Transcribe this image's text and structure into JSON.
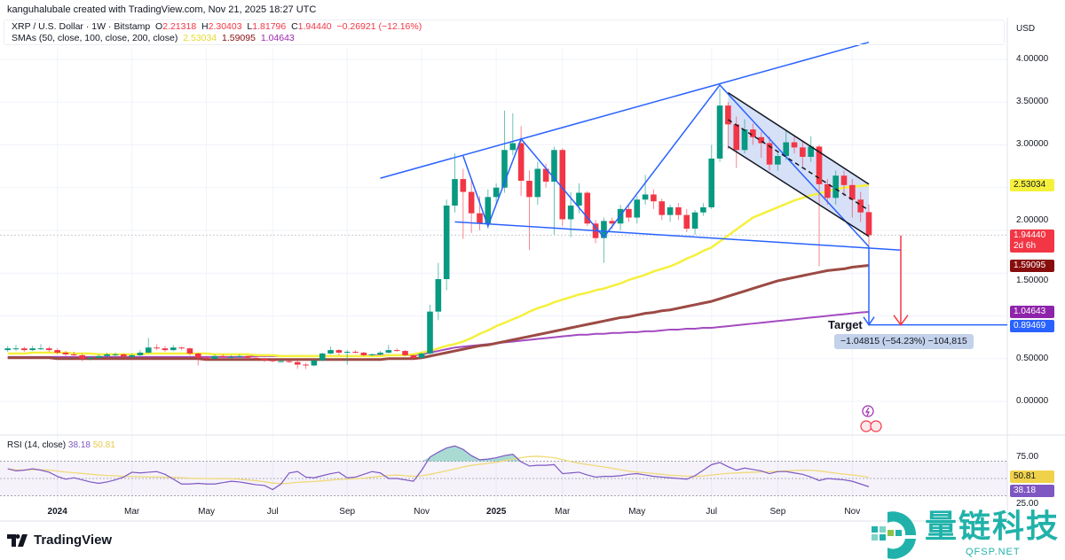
{
  "credit": "kanguhalubale created with TradingView.com, Nov 21, 2025 18:27 UTC",
  "legend": {
    "symbol": "XRP / U.S. Dollar · 1W · Bitstamp",
    "o_label": "O",
    "o": "2.21318",
    "h_label": "H",
    "h": "2.30403",
    "l_label": "L",
    "l": "1.81796",
    "c_label": "C",
    "c": "1.94440",
    "change": "−0.26921 (−12.16%)",
    "sma_label": "SMAs (50, close, 100, close, 200, close)",
    "sma50": "2.53034",
    "sma100": "1.59095",
    "sma200": "1.04643"
  },
  "price_axis": {
    "currency": "USD",
    "ticks": [
      "4.00000",
      "3.50000",
      "3.00000",
      "2.00000",
      "1.50000",
      "0.50000",
      "0.00000"
    ],
    "tags": {
      "sma50": "2.53034",
      "last": "1.94440",
      "countdown": "2d 6h",
      "sma100": "1.59095",
      "sma200": "1.04643",
      "target": "0.89469"
    }
  },
  "rsi": {
    "label": "RSI (14, close)",
    "value": "38.18",
    "ma": "50.81",
    "ticks": [
      "75.00",
      "25.00"
    ]
  },
  "annotation": {
    "target_label": "Target",
    "measure": "−1.04815 (−54.23%) −104,815"
  },
  "footer": {
    "brand": "TradingView"
  },
  "watermark": {
    "text": "量链科技",
    "sub": "QFSP.NET"
  },
  "colors": {
    "up": "#089981",
    "down": "#f23645",
    "sma50": "#f5f03c",
    "sma100": "#9c4a44",
    "sma200": "#a44bc0",
    "drawing": "#2962ff",
    "channel_fill": "#c5d3f3",
    "rsi": "#7e57c2",
    "rsi_ma": "#f0d978",
    "target_arrow": "#f23645"
  },
  "chart_data": {
    "type": "candlestick",
    "title": "XRP / U.S. Dollar · 1W · Bitstamp",
    "period": "1W",
    "last_bar_week": "2025-11-17",
    "ylim": [
      -0.6,
      4.1
    ],
    "x_ticks": [
      {
        "label": "2024",
        "date": "2024-01-01",
        "bold": true
      },
      {
        "label": "Mar",
        "date": "2024-03-04"
      },
      {
        "label": "May",
        "date": "2024-05-06"
      },
      {
        "label": "Jul",
        "date": "2024-07-01"
      },
      {
        "label": "Sep",
        "date": "2024-09-02"
      },
      {
        "label": "Nov",
        "date": "2024-11-04"
      },
      {
        "label": "2025",
        "date": "2025-01-06",
        "bold": true
      },
      {
        "label": "Mar",
        "date": "2025-03-03"
      },
      {
        "label": "May",
        "date": "2025-05-05"
      },
      {
        "label": "Jul",
        "date": "2025-07-07"
      },
      {
        "label": "Sep",
        "date": "2025-09-01"
      },
      {
        "label": "Nov",
        "date": "2025-11-03"
      }
    ],
    "y_grid": [
      0,
      0.5,
      1.0,
      1.5,
      2.0,
      2.5,
      3.0,
      3.5,
      4.0
    ],
    "ohlc": [
      [
        0.6,
        0.65,
        0.58,
        0.62
      ],
      [
        0.62,
        0.66,
        0.59,
        0.62
      ],
      [
        0.62,
        0.64,
        0.58,
        0.6
      ],
      [
        0.6,
        0.65,
        0.59,
        0.62
      ],
      [
        0.62,
        0.67,
        0.6,
        0.62
      ],
      [
        0.62,
        0.64,
        0.58,
        0.6
      ],
      [
        0.6,
        0.62,
        0.55,
        0.57
      ],
      [
        0.57,
        0.59,
        0.53,
        0.55
      ],
      [
        0.55,
        0.58,
        0.52,
        0.54
      ],
      [
        0.54,
        0.56,
        0.47,
        0.5
      ],
      [
        0.5,
        0.53,
        0.48,
        0.51
      ],
      [
        0.51,
        0.55,
        0.5,
        0.53
      ],
      [
        0.53,
        0.57,
        0.52,
        0.55
      ],
      [
        0.55,
        0.57,
        0.53,
        0.55
      ],
      [
        0.55,
        0.56,
        0.5,
        0.52
      ],
      [
        0.52,
        0.56,
        0.51,
        0.54
      ],
      [
        0.54,
        0.6,
        0.53,
        0.57
      ],
      [
        0.57,
        0.74,
        0.56,
        0.63
      ],
      [
        0.63,
        0.67,
        0.6,
        0.62
      ],
      [
        0.62,
        0.65,
        0.58,
        0.6
      ],
      [
        0.6,
        0.66,
        0.59,
        0.63
      ],
      [
        0.63,
        0.64,
        0.6,
        0.62
      ],
      [
        0.62,
        0.63,
        0.54,
        0.56
      ],
      [
        0.56,
        0.57,
        0.42,
        0.51
      ],
      [
        0.51,
        0.53,
        0.48,
        0.5
      ],
      [
        0.5,
        0.55,
        0.49,
        0.53
      ],
      [
        0.53,
        0.55,
        0.51,
        0.52
      ],
      [
        0.52,
        0.54,
        0.5,
        0.52
      ],
      [
        0.52,
        0.55,
        0.51,
        0.53
      ],
      [
        0.53,
        0.54,
        0.49,
        0.51
      ],
      [
        0.51,
        0.53,
        0.48,
        0.5
      ],
      [
        0.5,
        0.51,
        0.46,
        0.48
      ],
      [
        0.48,
        0.5,
        0.46,
        0.47
      ],
      [
        0.47,
        0.49,
        0.46,
        0.47
      ],
      [
        0.47,
        0.48,
        0.45,
        0.46
      ],
      [
        0.46,
        0.48,
        0.38,
        0.43
      ],
      [
        0.43,
        0.45,
        0.38,
        0.42
      ],
      [
        0.42,
        0.49,
        0.41,
        0.48
      ],
      [
        0.48,
        0.57,
        0.47,
        0.56
      ],
      [
        0.56,
        0.64,
        0.55,
        0.6
      ],
      [
        0.6,
        0.61,
        0.54,
        0.57
      ],
      [
        0.57,
        0.6,
        0.43,
        0.58
      ],
      [
        0.58,
        0.6,
        0.56,
        0.57
      ],
      [
        0.57,
        0.58,
        0.53,
        0.54
      ],
      [
        0.54,
        0.56,
        0.53,
        0.55
      ],
      [
        0.55,
        0.59,
        0.54,
        0.57
      ],
      [
        0.57,
        0.66,
        0.56,
        0.6
      ],
      [
        0.6,
        0.62,
        0.58,
        0.59
      ],
      [
        0.59,
        0.6,
        0.53,
        0.54
      ],
      [
        0.54,
        0.55,
        0.49,
        0.51
      ],
      [
        0.51,
        0.57,
        0.5,
        0.56
      ],
      [
        0.56,
        1.13,
        0.55,
        1.05
      ],
      [
        1.05,
        1.62,
        0.95,
        1.43
      ],
      [
        1.43,
        2.36,
        1.3,
        2.29
      ],
      [
        2.29,
        2.9,
        2.21,
        2.6
      ],
      [
        2.6,
        2.72,
        1.9,
        2.45
      ],
      [
        2.45,
        2.58,
        1.97,
        2.2
      ],
      [
        2.2,
        2.4,
        2.0,
        2.08
      ],
      [
        2.08,
        2.48,
        2.02,
        2.39
      ],
      [
        2.39,
        2.55,
        2.3,
        2.5
      ],
      [
        2.5,
        3.4,
        2.44,
        2.94
      ],
      [
        2.94,
        3.37,
        2.88,
        3.02
      ],
      [
        3.02,
        3.22,
        2.4,
        2.58
      ],
      [
        2.58,
        2.7,
        1.77,
        2.39
      ],
      [
        2.39,
        2.8,
        2.3,
        2.72
      ],
      [
        2.72,
        2.78,
        2.5,
        2.57
      ],
      [
        2.57,
        2.98,
        1.95,
        2.94
      ],
      [
        2.94,
        2.96,
        2.05,
        2.13
      ],
      [
        2.13,
        2.45,
        1.92,
        2.29
      ],
      [
        2.29,
        2.55,
        2.2,
        2.44
      ],
      [
        2.44,
        2.46,
        2.05,
        2.08
      ],
      [
        2.08,
        2.12,
        1.85,
        1.91
      ],
      [
        1.91,
        2.15,
        1.62,
        2.11
      ],
      [
        2.11,
        2.15,
        2.02,
        2.08
      ],
      [
        2.08,
        2.3,
        2.0,
        2.25
      ],
      [
        2.25,
        2.3,
        2.1,
        2.15
      ],
      [
        2.15,
        2.4,
        2.08,
        2.36
      ],
      [
        2.36,
        2.65,
        2.3,
        2.42
      ],
      [
        2.42,
        2.48,
        2.25,
        2.34
      ],
      [
        2.34,
        2.37,
        2.12,
        2.18
      ],
      [
        2.18,
        2.3,
        2.1,
        2.27
      ],
      [
        2.27,
        2.32,
        2.12,
        2.18
      ],
      [
        2.18,
        2.25,
        1.98,
        2.02
      ],
      [
        2.02,
        2.24,
        1.95,
        2.21
      ],
      [
        2.21,
        2.32,
        2.17,
        2.27
      ],
      [
        2.27,
        3.0,
        2.25,
        2.84
      ],
      [
        2.84,
        3.66,
        2.8,
        3.46
      ],
      [
        3.46,
        3.5,
        2.95,
        3.24
      ],
      [
        3.24,
        3.33,
        2.73,
        2.94
      ],
      [
        2.94,
        3.3,
        2.9,
        3.18
      ],
      [
        3.18,
        3.25,
        3.0,
        3.09
      ],
      [
        3.09,
        3.15,
        2.85,
        3.02
      ],
      [
        3.02,
        3.1,
        2.7,
        2.77
      ],
      [
        2.77,
        2.92,
        2.7,
        2.87
      ],
      [
        2.87,
        3.17,
        2.82,
        3.03
      ],
      [
        3.03,
        3.1,
        2.9,
        2.97
      ],
      [
        2.97,
        3.05,
        2.75,
        2.86
      ],
      [
        2.86,
        3.1,
        2.8,
        2.98
      ],
      [
        2.98,
        3.0,
        1.58,
        2.54
      ],
      [
        2.54,
        2.6,
        2.3,
        2.38
      ],
      [
        2.38,
        2.7,
        2.3,
        2.64
      ],
      [
        2.64,
        2.7,
        2.4,
        2.53
      ],
      [
        2.53,
        2.6,
        2.15,
        2.36
      ],
      [
        2.36,
        2.45,
        2.1,
        2.21
      ],
      [
        2.21318,
        2.30403,
        1.81796,
        1.9444
      ]
    ],
    "sma50": [
      0.56,
      0.56,
      0.56,
      0.57,
      0.57,
      0.57,
      0.57,
      0.57,
      0.56,
      0.56,
      0.56,
      0.55,
      0.55,
      0.55,
      0.55,
      0.55,
      0.55,
      0.56,
      0.56,
      0.56,
      0.56,
      0.56,
      0.56,
      0.56,
      0.56,
      0.55,
      0.55,
      0.55,
      0.55,
      0.55,
      0.54,
      0.54,
      0.54,
      0.53,
      0.53,
      0.53,
      0.53,
      0.53,
      0.53,
      0.53,
      0.53,
      0.53,
      0.53,
      0.53,
      0.53,
      0.53,
      0.54,
      0.54,
      0.54,
      0.55,
      0.57,
      0.59,
      0.62,
      0.65,
      0.67,
      0.7,
      0.74,
      0.79,
      0.83,
      0.88,
      0.92,
      0.96,
      1.0,
      1.05,
      1.09,
      1.12,
      1.16,
      1.19,
      1.22,
      1.25,
      1.27,
      1.3,
      1.32,
      1.35,
      1.38,
      1.42,
      1.45,
      1.48,
      1.52,
      1.55,
      1.58,
      1.62,
      1.67,
      1.71,
      1.76,
      1.8,
      1.87,
      1.94,
      2.01,
      2.08,
      2.15,
      2.19,
      2.23,
      2.27,
      2.31,
      2.35,
      2.38,
      2.41,
      2.43,
      2.46,
      2.48,
      2.5,
      2.51,
      2.52,
      2.53034
    ],
    "sma100": [
      0.51,
      0.51,
      0.51,
      0.51,
      0.51,
      0.51,
      0.5,
      0.5,
      0.5,
      0.5,
      0.5,
      0.5,
      0.5,
      0.5,
      0.5,
      0.5,
      0.5,
      0.5,
      0.5,
      0.5,
      0.5,
      0.5,
      0.5,
      0.5,
      0.49,
      0.49,
      0.49,
      0.49,
      0.49,
      0.49,
      0.49,
      0.49,
      0.49,
      0.49,
      0.49,
      0.49,
      0.49,
      0.49,
      0.49,
      0.49,
      0.49,
      0.49,
      0.49,
      0.49,
      0.49,
      0.49,
      0.5,
      0.5,
      0.5,
      0.5,
      0.51,
      0.53,
      0.55,
      0.57,
      0.59,
      0.61,
      0.63,
      0.65,
      0.66,
      0.68,
      0.7,
      0.72,
      0.74,
      0.76,
      0.78,
      0.8,
      0.82,
      0.84,
      0.86,
      0.88,
      0.9,
      0.92,
      0.94,
      0.96,
      0.98,
      0.99,
      1.01,
      1.03,
      1.04,
      1.06,
      1.07,
      1.09,
      1.11,
      1.13,
      1.15,
      1.17,
      1.2,
      1.23,
      1.26,
      1.29,
      1.32,
      1.35,
      1.38,
      1.41,
      1.43,
      1.45,
      1.47,
      1.49,
      1.51,
      1.53,
      1.54,
      1.55,
      1.57,
      1.58,
      1.59095
    ],
    "sma200": [
      0.52,
      0.52,
      0.52,
      0.52,
      0.52,
      0.52,
      0.52,
      0.52,
      0.52,
      0.52,
      0.52,
      0.52,
      0.52,
      0.52,
      0.52,
      0.52,
      0.52,
      0.52,
      0.52,
      0.52,
      0.52,
      0.52,
      0.52,
      0.52,
      0.52,
      0.52,
      0.52,
      0.52,
      0.52,
      0.52,
      0.53,
      0.53,
      0.53,
      0.53,
      0.53,
      0.53,
      0.53,
      0.53,
      0.53,
      0.53,
      0.53,
      0.53,
      0.53,
      0.53,
      0.54,
      0.54,
      0.54,
      0.54,
      0.54,
      0.54,
      0.55,
      0.57,
      0.59,
      0.61,
      0.63,
      0.64,
      0.65,
      0.66,
      0.67,
      0.68,
      0.69,
      0.7,
      0.71,
      0.72,
      0.73,
      0.74,
      0.75,
      0.76,
      0.77,
      0.78,
      0.78,
      0.79,
      0.79,
      0.8,
      0.8,
      0.81,
      0.81,
      0.82,
      0.82,
      0.83,
      0.84,
      0.84,
      0.85,
      0.85,
      0.86,
      0.86,
      0.87,
      0.88,
      0.89,
      0.9,
      0.91,
      0.92,
      0.93,
      0.94,
      0.95,
      0.96,
      0.97,
      0.98,
      0.99,
      1.0,
      1.01,
      1.02,
      1.03,
      1.04,
      1.04643
    ],
    "rsi14": [
      64,
      61,
      62,
      64,
      62,
      59,
      53,
      49,
      51,
      48,
      45,
      43,
      45,
      48,
      52,
      59,
      58,
      59,
      60,
      56,
      49,
      42,
      42,
      43,
      42,
      42,
      44,
      46,
      45,
      43,
      41,
      40,
      34,
      42,
      58,
      60,
      52,
      51,
      54,
      57,
      59,
      51,
      52,
      56,
      60,
      58,
      50,
      50,
      48,
      46,
      62,
      81,
      88,
      94,
      97,
      92,
      83,
      77,
      78,
      80,
      83,
      85,
      74,
      68,
      69,
      69,
      70,
      57,
      58,
      59,
      55,
      52,
      53,
      53,
      54,
      56,
      57,
      55,
      53,
      52,
      51,
      50,
      49,
      54,
      62,
      70,
      73,
      67,
      62,
      65,
      63,
      61,
      57,
      60,
      60,
      58,
      56,
      52,
      47,
      50,
      49,
      48,
      46,
      42,
      38.18
    ],
    "rsi_ylim": [
      25,
      75
    ],
    "drawings": {
      "upper_trendline": [
        [
          "2024-09-30",
          2.61
        ],
        [
          "2025-11-17",
          4.2
        ]
      ],
      "support_line": [
        [
          "2024-12-02",
          2.1
        ],
        [
          "2025-12-14",
          1.77
        ]
      ],
      "zigzag": [
        [
          "2024-12-09",
          2.87
        ],
        [
          "2024-12-30",
          2.05
        ],
        [
          "2025-01-27",
          3.07
        ],
        [
          "2025-04-07",
          1.92
        ],
        [
          "2025-07-14",
          3.7
        ],
        [
          "2025-11-17",
          1.81
        ]
      ],
      "channel_upper": [
        [
          "2025-07-21",
          3.61
        ],
        [
          "2025-11-17",
          2.54
        ]
      ],
      "channel_lower": [
        [
          "2025-07-21",
          2.98
        ],
        [
          "2025-11-17",
          1.93
        ]
      ],
      "target_price": 0.89469,
      "target_arrow_blue": [
        "2025-11-17",
        1.81
      ],
      "target_arrow_red": [
        "2025-12-14",
        1.94
      ],
      "last_price": 1.9444
    }
  }
}
